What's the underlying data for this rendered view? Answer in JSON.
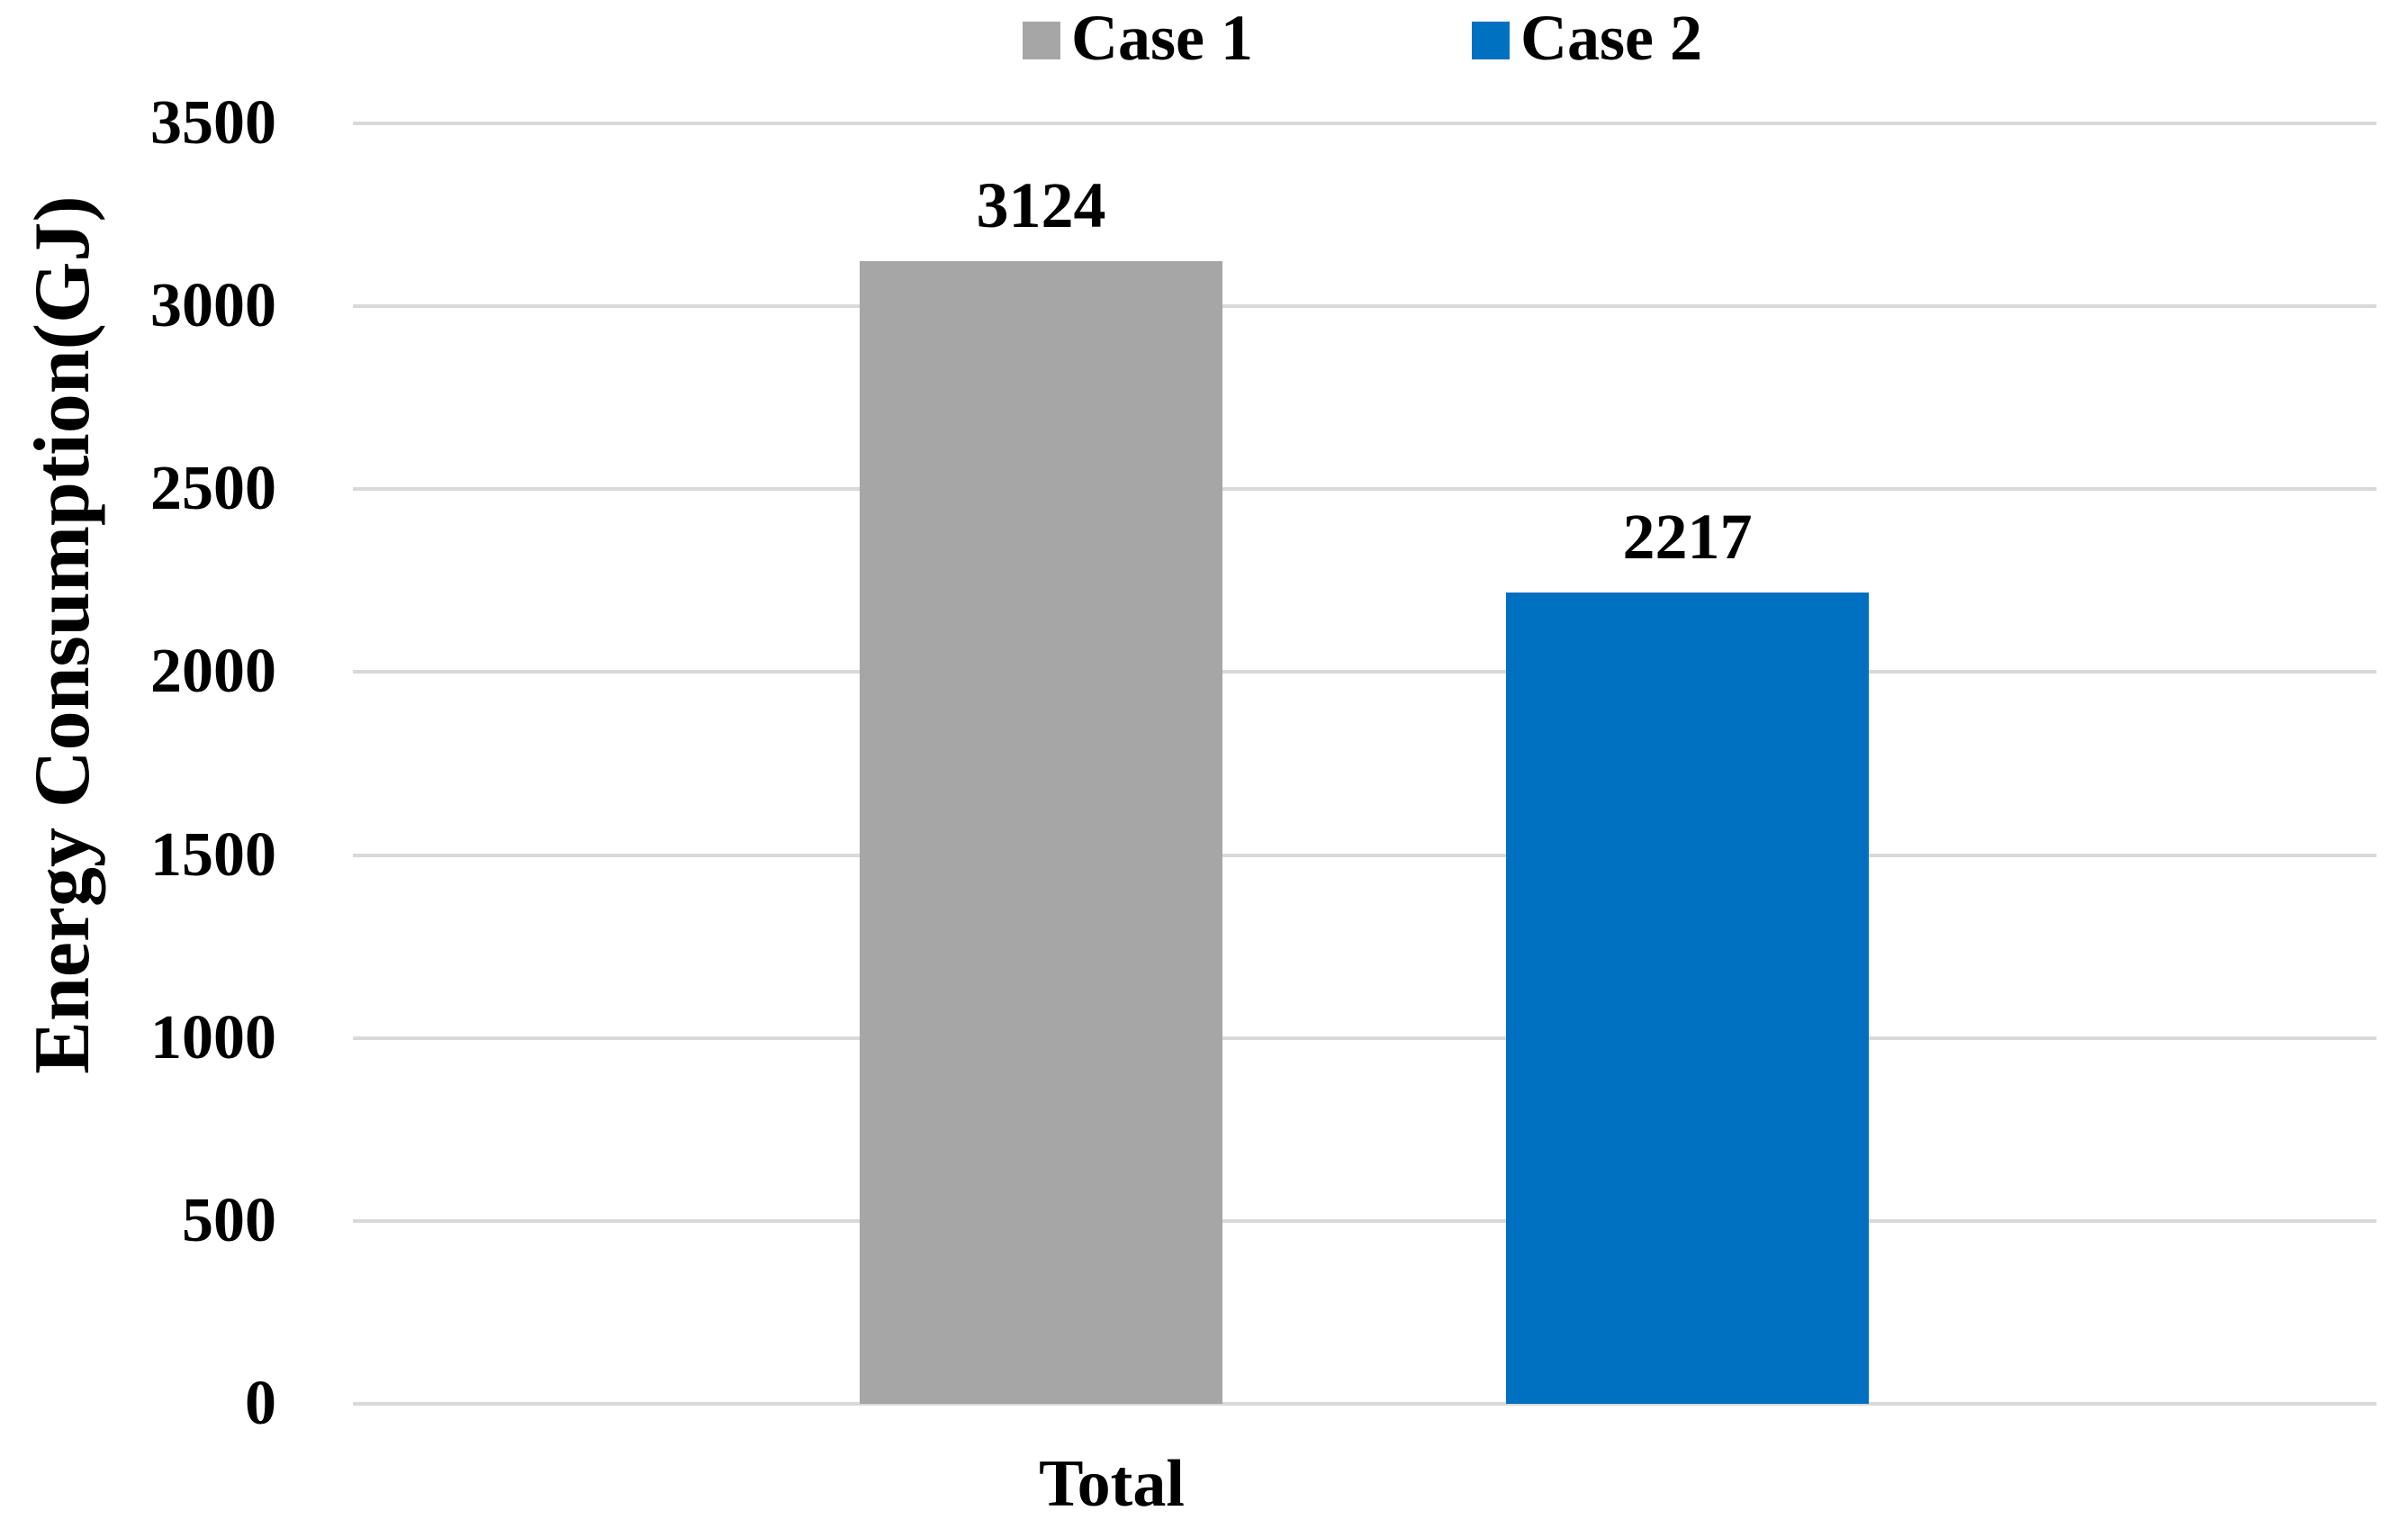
{
  "chart_data": {
    "type": "bar",
    "title": "",
    "xlabel": "",
    "ylabel": "Energy Consumption(GJ)",
    "categories": [
      "Total"
    ],
    "series": [
      {
        "name": "Case 1",
        "color": "#A6A6A6",
        "values": [
          3124
        ]
      },
      {
        "name": "Case 2",
        "color": "#0070C0",
        "values": [
          2217
        ]
      }
    ],
    "data_labels": [
      3124,
      2217
    ],
    "ylim": [
      0,
      3500
    ],
    "yticks": [
      0,
      500,
      1000,
      1500,
      2000,
      2500,
      3000,
      3500
    ],
    "grid": "horizontal gridlines on",
    "gridline_color": "#D9D9D9",
    "legend_position": "top center",
    "text_color": "#000000",
    "background_color": "#FFFFFF"
  }
}
